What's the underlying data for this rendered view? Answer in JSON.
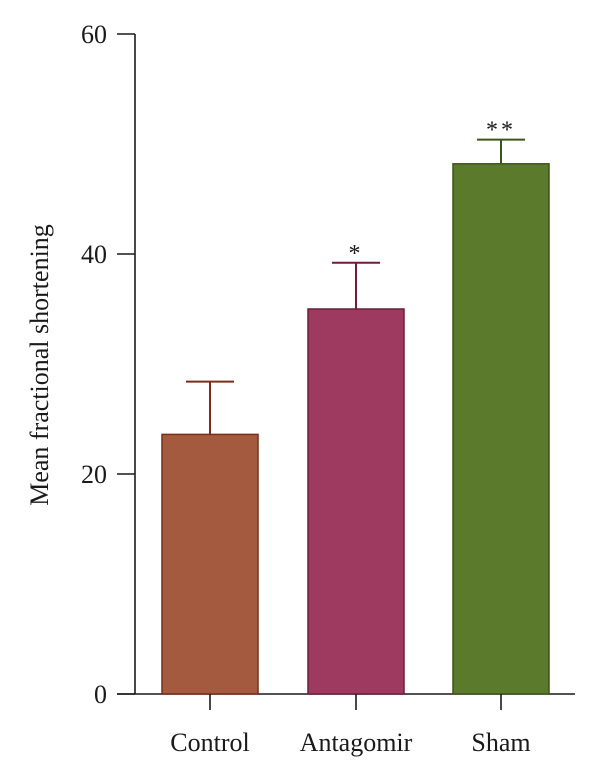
{
  "chart_data": {
    "type": "bar",
    "categories": [
      "Control",
      "Antagomir",
      "Sham"
    ],
    "values": [
      23.6,
      35.0,
      48.2
    ],
    "errors": [
      4.8,
      4.2,
      2.2
    ],
    "annotations": [
      "",
      "*",
      "**"
    ],
    "colors": [
      "#a45a3e",
      "#9e3a5f",
      "#5c7a2c"
    ],
    "edge_colors": [
      "#7a2d18",
      "#6e1e3c",
      "#3c5518"
    ],
    "title": "",
    "xlabel": "",
    "ylabel": "Mean fractional shortening",
    "ylim": [
      0,
      60
    ],
    "yticks": [
      0,
      20,
      40,
      60
    ],
    "grid": false,
    "legend": "none"
  }
}
